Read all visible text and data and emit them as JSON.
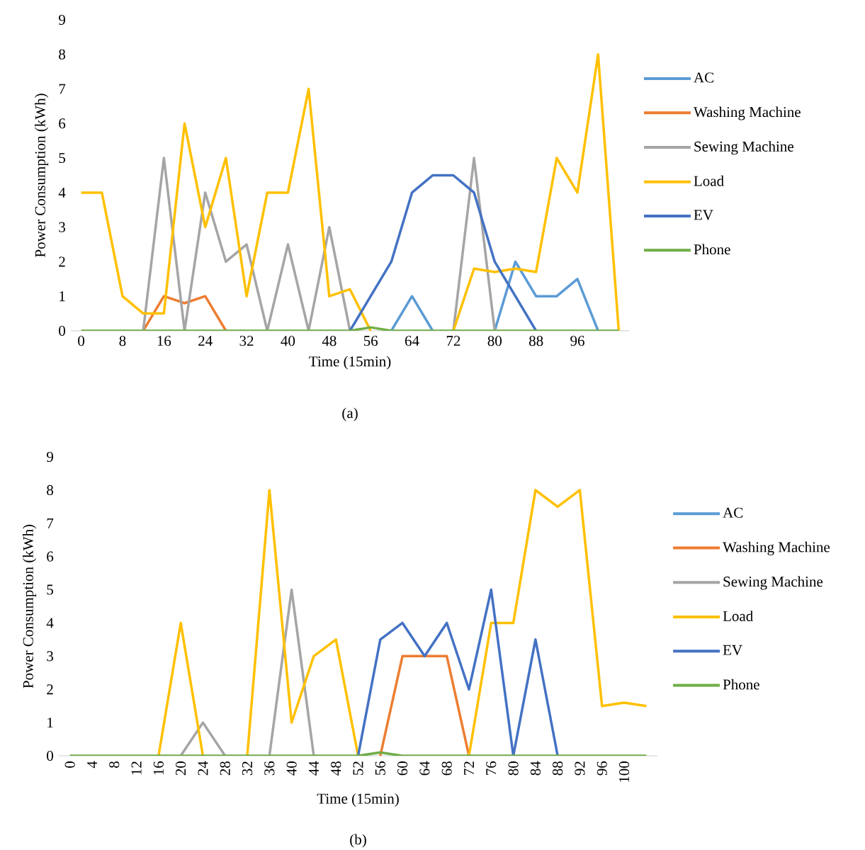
{
  "chart_data": [
    {
      "type": "line",
      "xlabel": "Time (15min)",
      "ylabel": "Power Consumption (kWh)",
      "annotations": [
        "(a)"
      ],
      "legend": "right",
      "grid": false,
      "x": [
        0,
        4,
        8,
        12,
        16,
        20,
        24,
        28,
        32,
        36,
        40,
        44,
        48,
        52,
        56,
        60,
        64,
        68,
        72,
        76,
        80,
        84,
        88,
        92,
        96,
        100,
        104
      ],
      "xlim": [
        -2,
        106
      ],
      "xticks": [
        0,
        8,
        16,
        24,
        32,
        40,
        48,
        56,
        64,
        72,
        80,
        88,
        96
      ],
      "ylim": [
        0,
        9
      ],
      "yticks": [
        0,
        1,
        2,
        3,
        4,
        5,
        6,
        7,
        8,
        9
      ],
      "series": [
        {
          "name": "AC",
          "color": "#5b9bd5",
          "values": [
            null,
            null,
            null,
            null,
            null,
            null,
            null,
            null,
            null,
            null,
            null,
            null,
            null,
            null,
            null,
            0,
            1,
            0,
            null,
            null,
            0,
            2,
            1,
            1,
            1.5,
            0,
            null
          ]
        },
        {
          "name": "Washing Machine",
          "color": "#ed7d31",
          "values": [
            null,
            null,
            null,
            0,
            1,
            0.8,
            1,
            0,
            null,
            null,
            null,
            null,
            null,
            null,
            null,
            null,
            null,
            null,
            null,
            null,
            null,
            null,
            null,
            null,
            null,
            null,
            null
          ]
        },
        {
          "name": "Sewing Machine",
          "color": "#a5a5a5",
          "values": [
            null,
            null,
            null,
            0,
            5,
            0,
            4,
            2,
            2.5,
            0,
            2.5,
            0,
            3,
            0,
            null,
            null,
            null,
            null,
            0,
            5,
            0,
            null,
            null,
            null,
            null,
            null,
            null
          ]
        },
        {
          "name": "Load",
          "color": "#ffc000",
          "values": [
            4,
            4,
            1,
            0.5,
            0.5,
            6,
            3,
            5,
            1,
            4,
            4,
            7,
            1,
            1.2,
            0,
            null,
            null,
            null,
            0,
            1.8,
            1.7,
            1.8,
            1.7,
            5,
            4,
            8,
            0
          ]
        },
        {
          "name": "EV",
          "color": "#4472c4",
          "values": [
            null,
            null,
            null,
            null,
            null,
            null,
            null,
            null,
            null,
            null,
            null,
            null,
            null,
            0,
            1,
            2,
            4,
            4.5,
            4.5,
            4,
            2,
            1,
            0,
            null,
            null,
            null,
            null
          ]
        },
        {
          "name": "Phone",
          "color": "#70ad47",
          "values": [
            0,
            0,
            0,
            0,
            0,
            0,
            0,
            0,
            0,
            0,
            0,
            0,
            0,
            0,
            0.1,
            0,
            0,
            0,
            0,
            0,
            0,
            0,
            0,
            0,
            0,
            0,
            0
          ]
        }
      ]
    },
    {
      "type": "line",
      "xlabel": "Time (15min)",
      "ylabel": "Power Consumption (kWh)",
      "annotations": [
        "(b)"
      ],
      "legend": "right",
      "grid": false,
      "x": [
        0,
        4,
        8,
        12,
        16,
        20,
        24,
        28,
        32,
        36,
        40,
        44,
        48,
        52,
        56,
        60,
        64,
        68,
        72,
        76,
        80,
        84,
        88,
        92,
        96,
        100,
        104
      ],
      "xlim": [
        -2,
        106
      ],
      "xticks": [
        0,
        4,
        8,
        12,
        16,
        20,
        24,
        28,
        32,
        36,
        40,
        44,
        48,
        52,
        56,
        60,
        64,
        68,
        72,
        76,
        80,
        84,
        88,
        92,
        96,
        100
      ],
      "ylim": [
        0,
        9
      ],
      "yticks": [
        0,
        1,
        2,
        3,
        4,
        5,
        6,
        7,
        8,
        9
      ],
      "series": [
        {
          "name": "AC",
          "color": "#5b9bd5",
          "values": [
            null,
            null,
            null,
            null,
            null,
            null,
            null,
            null,
            null,
            null,
            null,
            null,
            null,
            null,
            null,
            null,
            null,
            null,
            null,
            null,
            null,
            null,
            null,
            null,
            null,
            null,
            null
          ]
        },
        {
          "name": "Washing Machine",
          "color": "#ed7d31",
          "values": [
            null,
            null,
            null,
            null,
            null,
            null,
            null,
            null,
            null,
            null,
            null,
            null,
            null,
            null,
            0,
            3,
            3,
            3,
            0,
            null,
            null,
            null,
            null,
            null,
            null,
            null,
            null
          ]
        },
        {
          "name": "Sewing Machine",
          "color": "#a5a5a5",
          "values": [
            null,
            null,
            null,
            null,
            null,
            0,
            1,
            0,
            null,
            0,
            5,
            0,
            null,
            null,
            null,
            null,
            null,
            null,
            null,
            null,
            null,
            null,
            null,
            null,
            null,
            null,
            null
          ]
        },
        {
          "name": "Load",
          "color": "#ffc000",
          "values": [
            null,
            null,
            null,
            null,
            0,
            4,
            0,
            null,
            0,
            8,
            1,
            3,
            3.5,
            0,
            null,
            null,
            null,
            null,
            0,
            4,
            4,
            8,
            7.5,
            8,
            1.5,
            1.6,
            1.5
          ]
        },
        {
          "name": "EV",
          "color": "#4472c4",
          "values": [
            null,
            null,
            null,
            null,
            null,
            null,
            null,
            null,
            null,
            null,
            null,
            null,
            null,
            0,
            3.5,
            4,
            3,
            4,
            2,
            5,
            0,
            3.5,
            0,
            null,
            null,
            null,
            null
          ]
        },
        {
          "name": "Phone",
          "color": "#70ad47",
          "values": [
            0,
            0,
            0,
            0,
            0,
            0,
            0,
            0,
            0,
            0,
            0,
            0,
            0,
            0,
            0.1,
            0,
            0,
            0,
            0,
            0,
            0,
            0,
            0,
            0,
            0,
            0,
            0
          ]
        }
      ]
    }
  ]
}
